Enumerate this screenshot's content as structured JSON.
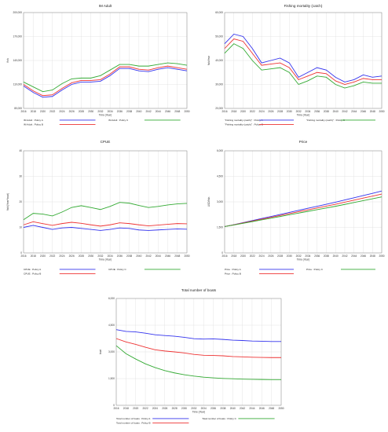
{
  "chart_data": [
    {
      "type": "line",
      "title": "IM Adult",
      "xlabel": "Time (Year)",
      "ylabel": "fish",
      "x": [
        2016,
        2018,
        2020,
        2022,
        2024,
        2026,
        2028,
        2030,
        2032,
        2034,
        2036,
        2038,
        2040,
        2042,
        2044,
        2046,
        2048,
        2050
      ],
      "xticks": [
        "2016",
        "2018",
        "2020",
        "2022",
        "2024",
        "2026",
        "2028",
        "2030",
        "2032",
        "2034",
        "2036",
        "2038",
        "2040",
        "2042",
        "2044",
        "2046",
        "2048",
        "2050"
      ],
      "ylim": [
        80000,
        200000
      ],
      "yticks": [
        80000,
        110000,
        140000,
        170000,
        200000
      ],
      "yticklabels": [
        "80,000",
        "110,000",
        "140,000",
        "170,000",
        "200,000"
      ],
      "series": [
        {
          "name": "IM Adult : Policy A",
          "color": "#3333ee",
          "values": [
            108000,
            100000,
            94000,
            95000,
            103000,
            110000,
            113000,
            113000,
            114000,
            121000,
            130000,
            130000,
            127000,
            126000,
            129000,
            131000,
            129000,
            127000
          ]
        },
        {
          "name": "IM Adult : Policy B",
          "color": "#ee3333",
          "values": [
            110000,
            102000,
            96000,
            97000,
            105000,
            112000,
            115000,
            115000,
            116000,
            123000,
            132000,
            132000,
            129000,
            128000,
            131000,
            133000,
            131000,
            129000
          ]
        },
        {
          "name": "IM Adult : Policy C",
          "color": "#33aa33",
          "values": [
            113000,
            107000,
            101000,
            103000,
            111000,
            117000,
            118000,
            118000,
            121000,
            128000,
            135000,
            135000,
            133000,
            133000,
            135000,
            137000,
            136000,
            134000
          ]
        }
      ]
    },
    {
      "type": "line",
      "title": "Fishing mortality (catch)",
      "xlabel": "Time (Year)",
      "ylabel": "fish/Year",
      "x": [
        2016,
        2018,
        2020,
        2022,
        2024,
        2026,
        2028,
        2030,
        2032,
        2034,
        2036,
        2038,
        2040,
        2042,
        2044,
        2046,
        2048,
        2050
      ],
      "xticks": [
        "2016",
        "2018",
        "2020",
        "2022",
        "2024",
        "2026",
        "2028",
        "2030",
        "2032",
        "2034",
        "2036",
        "2038",
        "2040",
        "2042",
        "2044",
        "2046",
        "2048",
        "2050"
      ],
      "ylim": [
        20000,
        60000
      ],
      "yticks": [
        20000,
        30000,
        40000,
        50000,
        60000
      ],
      "yticklabels": [
        "20,000",
        "30,000",
        "40,000",
        "50,000",
        "60,000"
      ],
      "series": [
        {
          "name": "\"Fishing mortality (catch)\" : Policy A",
          "color": "#3333ee",
          "values": [
            47000,
            51000,
            50000,
            45000,
            39000,
            40000,
            41000,
            39000,
            33000,
            35000,
            37000,
            36000,
            33000,
            31000,
            32000,
            34000,
            33000,
            33500
          ]
        },
        {
          "name": "\"Fishing mortality (catch)\" : Policy B",
          "color": "#ee3333",
          "values": [
            45000,
            49000,
            48000,
            43000,
            38000,
            38500,
            39000,
            37000,
            32000,
            33500,
            35000,
            34500,
            31500,
            30000,
            31000,
            32500,
            32000,
            32000
          ]
        },
        {
          "name": "\"Fishing mortality (catch)\" : Policy C",
          "color": "#33aa33",
          "values": [
            43000,
            47000,
            45000,
            40000,
            36000,
            36500,
            37000,
            35000,
            30000,
            31500,
            33500,
            33000,
            30000,
            28500,
            29500,
            31000,
            30500,
            30500
          ]
        }
      ]
    },
    {
      "type": "line",
      "title": "CPUE",
      "xlabel": "Time (Year)",
      "ylabel": "fish/(Year*boat)",
      "x": [
        2016,
        2018,
        2020,
        2022,
        2024,
        2026,
        2028,
        2030,
        2032,
        2034,
        2036,
        2038,
        2040,
        2042,
        2044,
        2046,
        2048,
        2050
      ],
      "xticks": [
        "2016",
        "2018",
        "2020",
        "2022",
        "2024",
        "2026",
        "2028",
        "2030",
        "2032",
        "2034",
        "2036",
        "2038",
        "2040",
        "2042",
        "2044",
        "2046",
        "2048",
        "2050"
      ],
      "ylim": [
        0,
        40
      ],
      "yticks": [
        0,
        10,
        20,
        30,
        40
      ],
      "yticklabels": [
        "0",
        "10",
        "20",
        "30",
        "40"
      ],
      "series": [
        {
          "name": "CPUE : Policy A",
          "color": "#3333ee",
          "values": [
            10,
            10.8,
            10,
            9.2,
            9.8,
            10,
            9.6,
            9.2,
            8.8,
            9.2,
            9.8,
            9.6,
            9,
            8.8,
            9,
            9.2,
            9.4,
            9.3
          ]
        },
        {
          "name": "CPUE : Policy B",
          "color": "#ee3333",
          "values": [
            11,
            12.2,
            11.5,
            10.8,
            11.5,
            12,
            11.6,
            11,
            10.5,
            11,
            11.8,
            11.5,
            11,
            10.6,
            10.9,
            11.2,
            11.5,
            11.4
          ]
        },
        {
          "name": "CPUE : Policy C",
          "color": "#33aa33",
          "values": [
            13,
            15.5,
            15.2,
            14.5,
            16,
            17.8,
            18.5,
            17.8,
            17,
            18.2,
            19.8,
            19.5,
            18.6,
            17.8,
            18.2,
            18.8,
            19.2,
            19.4
          ]
        }
      ]
    },
    {
      "type": "line",
      "title": "Price",
      "xlabel": "Time (Year)",
      "ylabel": "USD/fish",
      "x": [
        2016,
        2018,
        2020,
        2022,
        2024,
        2026,
        2028,
        2030,
        2032,
        2034,
        2036,
        2038,
        2040,
        2042,
        2044,
        2046,
        2048,
        2050
      ],
      "xticks": [
        "2016",
        "2018",
        "2020",
        "2022",
        "2024",
        "2026",
        "2028",
        "2030",
        "2032",
        "2034",
        "2036",
        "2038",
        "2040",
        "2042",
        "2044",
        "2046",
        "2048",
        "2050"
      ],
      "ylim": [
        0,
        6000
      ],
      "yticks": [
        0,
        1500,
        3000,
        4500,
        6000
      ],
      "yticklabels": [
        "0",
        "1,500",
        "3,000",
        "4,500",
        "6,000"
      ],
      "series": [
        {
          "name": "Price : Policy A",
          "color": "#3333ee",
          "values": [
            1550,
            1660,
            1780,
            1900,
            2020,
            2140,
            2260,
            2380,
            2500,
            2620,
            2740,
            2860,
            2980,
            3110,
            3240,
            3370,
            3500,
            3640
          ]
        },
        {
          "name": "Price : Policy B",
          "color": "#ee3333",
          "values": [
            1550,
            1650,
            1760,
            1870,
            1980,
            2090,
            2200,
            2310,
            2420,
            2530,
            2640,
            2750,
            2860,
            2980,
            3100,
            3220,
            3340,
            3460
          ]
        },
        {
          "name": "Price : Policy C",
          "color": "#33aa33",
          "values": [
            1550,
            1640,
            1740,
            1840,
            1940,
            2040,
            2140,
            2240,
            2340,
            2440,
            2540,
            2640,
            2740,
            2850,
            2960,
            3070,
            3180,
            3290
          ]
        }
      ]
    },
    {
      "type": "line",
      "title": "Total number of boats",
      "xlabel": "Time (Year)",
      "ylabel": "boat",
      "x": [
        2016,
        2018,
        2020,
        2022,
        2024,
        2026,
        2028,
        2030,
        2032,
        2034,
        2036,
        2038,
        2040,
        2042,
        2044,
        2046,
        2048,
        2050
      ],
      "xticks": [
        "2016",
        "2018",
        "2020",
        "2022",
        "2024",
        "2026",
        "2028",
        "2030",
        "2032",
        "2034",
        "2036",
        "2038",
        "2040",
        "2042",
        "2044",
        "2046",
        "2048",
        "2050"
      ],
      "ylim": [
        0,
        6000
      ],
      "yticks": [
        0,
        1500,
        3000,
        4500,
        6000
      ],
      "yticklabels": [
        "0",
        "1,500",
        "3,000",
        "4,500",
        "6,000"
      ],
      "series": [
        {
          "name": "Total number of boats : Policy A",
          "color": "#3333ee",
          "values": [
            4250,
            4150,
            4120,
            4050,
            3960,
            3920,
            3880,
            3820,
            3740,
            3720,
            3730,
            3700,
            3660,
            3640,
            3610,
            3600,
            3580,
            3580
          ]
        },
        {
          "name": "Total number of boats : Policy B",
          "color": "#ee3333",
          "values": [
            3750,
            3560,
            3420,
            3260,
            3120,
            3050,
            3000,
            2940,
            2860,
            2810,
            2800,
            2780,
            2740,
            2720,
            2700,
            2690,
            2680,
            2680
          ]
        },
        {
          "name": "Total number of boats : Policy C",
          "color": "#33aa33",
          "values": [
            3350,
            2900,
            2600,
            2330,
            2120,
            1950,
            1820,
            1720,
            1640,
            1580,
            1540,
            1510,
            1490,
            1470,
            1460,
            1450,
            1440,
            1440
          ]
        }
      ]
    }
  ]
}
